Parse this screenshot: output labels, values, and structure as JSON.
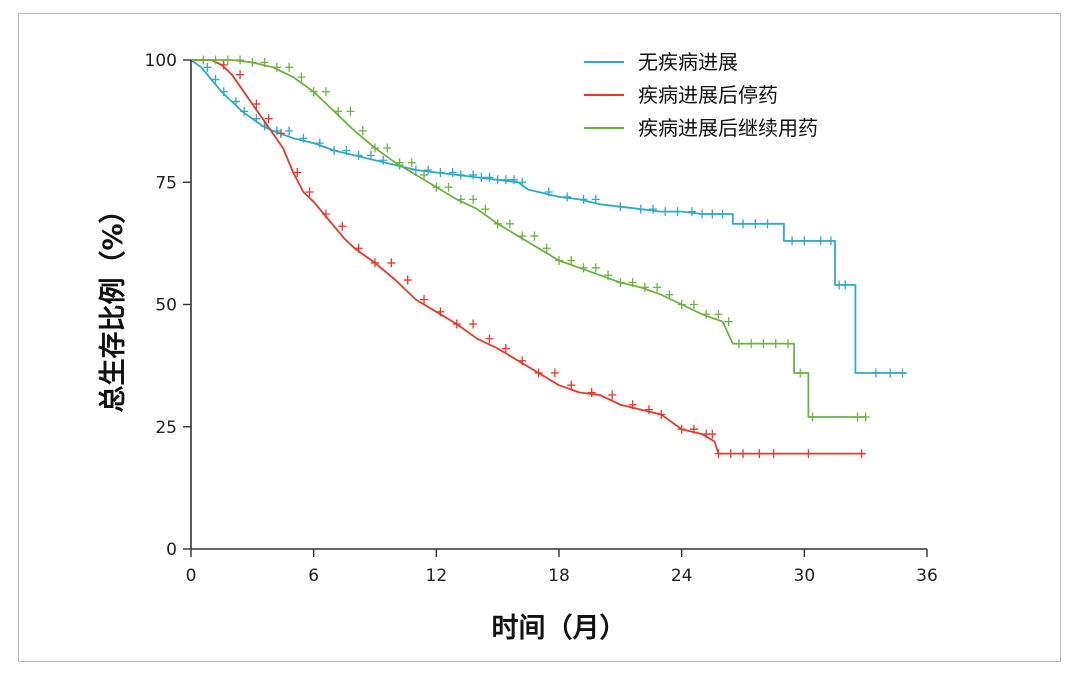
{
  "chart_data": {
    "type": "line",
    "subtype": "kaplan-meier",
    "title": "",
    "xlabel": "时间（月）",
    "ylabel": "总生存比例（%）",
    "xlim": [
      0,
      36
    ],
    "ylim": [
      0,
      100
    ],
    "xticks": [
      "0",
      "6",
      "12",
      "18",
      "24",
      "30",
      "36"
    ],
    "yticks": [
      "0",
      "25",
      "50",
      "75",
      "100"
    ],
    "legend_position": "top-right",
    "grid": false,
    "series": [
      {
        "name": "无疾病进展",
        "color": "#2ea9c9",
        "points": [
          [
            0,
            100
          ],
          [
            0.5,
            98.5
          ],
          [
            1,
            96
          ],
          [
            1.5,
            93.5
          ],
          [
            2,
            91.5
          ],
          [
            2.5,
            89.5
          ],
          [
            3,
            88
          ],
          [
            3.5,
            86.5
          ],
          [
            4,
            85.5
          ],
          [
            5,
            84
          ],
          [
            6,
            83
          ],
          [
            7,
            81.5
          ],
          [
            8,
            80.5
          ],
          [
            9,
            79.5
          ],
          [
            10,
            78.5
          ],
          [
            11,
            77.5
          ],
          [
            12,
            77
          ],
          [
            13,
            76.5
          ],
          [
            14,
            76
          ],
          [
            15,
            75.5
          ],
          [
            16,
            75
          ],
          [
            16.5,
            73.5
          ],
          [
            17,
            73
          ],
          [
            18,
            72
          ],
          [
            19,
            71.5
          ],
          [
            20,
            70.5
          ],
          [
            21,
            70
          ],
          [
            22,
            69.5
          ],
          [
            23,
            69
          ],
          [
            24,
            69
          ],
          [
            25,
            68.5
          ],
          [
            26.5,
            68.5
          ],
          [
            26.5,
            66.5
          ],
          [
            29,
            66.5
          ],
          [
            29,
            63
          ],
          [
            31.5,
            63
          ],
          [
            31.5,
            54
          ],
          [
            32.5,
            54
          ],
          [
            32.5,
            36
          ],
          [
            35,
            36
          ]
        ],
        "censor_x": [
          0.8,
          1.2,
          1.6,
          2.2,
          2.6,
          3.2,
          3.6,
          4.2,
          4.8,
          5.5,
          6.3,
          7,
          7.6,
          8.2,
          8.8,
          9.4,
          10.2,
          11,
          11.6,
          12.2,
          12.8,
          13.2,
          13.8,
          14.2,
          14.6,
          15,
          15.4,
          15.8,
          16.2,
          17.5,
          18.4,
          19.2,
          19.8,
          21,
          22,
          22.6,
          23.2,
          23.8,
          24.5,
          25,
          25.5,
          26,
          27,
          27.6,
          28.2,
          29.4,
          30,
          30.8,
          31.3,
          31.7,
          32,
          33.5,
          34.2,
          34.8
        ]
      },
      {
        "name": "疾病进展后停药",
        "color": "#e8382b",
        "points": [
          [
            0,
            100
          ],
          [
            1,
            100
          ],
          [
            1.5,
            99
          ],
          [
            2,
            97
          ],
          [
            2.5,
            94
          ],
          [
            3,
            91
          ],
          [
            3.5,
            88
          ],
          [
            4,
            85
          ],
          [
            4.5,
            82
          ],
          [
            5,
            77
          ],
          [
            5.5,
            73
          ],
          [
            6,
            71
          ],
          [
            6.5,
            68.5
          ],
          [
            7,
            66
          ],
          [
            7.5,
            63.5
          ],
          [
            8,
            61.5
          ],
          [
            9,
            58.5
          ],
          [
            10,
            55
          ],
          [
            11,
            51
          ],
          [
            12,
            48.5
          ],
          [
            13,
            46
          ],
          [
            14,
            43
          ],
          [
            15,
            41
          ],
          [
            16,
            38.5
          ],
          [
            17,
            36
          ],
          [
            18,
            33.5
          ],
          [
            19,
            32
          ],
          [
            20,
            31.5
          ],
          [
            21,
            29.5
          ],
          [
            22,
            28.5
          ],
          [
            23,
            27.5
          ],
          [
            24,
            24.5
          ],
          [
            25,
            23.5
          ],
          [
            25.6,
            22
          ],
          [
            25.8,
            19.5
          ],
          [
            33,
            19.5
          ]
        ],
        "censor_x": [
          1.6,
          2.4,
          3.2,
          3.8,
          4.4,
          5.2,
          5.8,
          6.6,
          7.4,
          8.2,
          9,
          9.8,
          10.6,
          11.4,
          12.2,
          13,
          13.8,
          14.6,
          15.4,
          16.2,
          17,
          17.8,
          18.6,
          19.6,
          20.6,
          21.6,
          22.4,
          23,
          24,
          24.6,
          25.2,
          25.5,
          25.8,
          26.4,
          27,
          27.8,
          28.5,
          30.2,
          32.8
        ]
      },
      {
        "name": "疾病进展后继续用药",
        "color": "#6db33f",
        "points": [
          [
            0,
            100
          ],
          [
            2,
            100
          ],
          [
            3,
            99.5
          ],
          [
            4,
            98.5
          ],
          [
            5,
            96.5
          ],
          [
            6,
            93.5
          ],
          [
            7,
            89.5
          ],
          [
            8,
            85.5
          ],
          [
            9,
            82
          ],
          [
            10,
            79
          ],
          [
            11,
            76.5
          ],
          [
            12,
            74
          ],
          [
            13,
            71.5
          ],
          [
            14,
            69.5
          ],
          [
            15,
            66.5
          ],
          [
            16,
            64
          ],
          [
            17,
            61.5
          ],
          [
            18,
            59
          ],
          [
            19,
            57.5
          ],
          [
            20,
            56
          ],
          [
            21,
            54.5
          ],
          [
            22,
            53.5
          ],
          [
            23,
            52
          ],
          [
            24,
            50
          ],
          [
            25,
            48
          ],
          [
            26,
            46.5
          ],
          [
            26.5,
            42
          ],
          [
            29.5,
            42
          ],
          [
            29.5,
            36
          ],
          [
            30.2,
            36
          ],
          [
            30.2,
            27
          ],
          [
            33,
            27
          ]
        ],
        "censor_x": [
          0.6,
          1.2,
          1.8,
          2.4,
          3,
          3.6,
          4.2,
          4.8,
          5.4,
          6,
          6.6,
          7.2,
          7.8,
          8.4,
          9,
          9.6,
          10.2,
          10.8,
          11.4,
          12,
          12.6,
          13.2,
          13.8,
          14.4,
          15,
          15.6,
          16.2,
          16.8,
          17.4,
          18,
          18.6,
          19.2,
          19.8,
          20.4,
          21,
          21.6,
          22.2,
          22.8,
          23.4,
          24,
          24.6,
          25.2,
          25.8,
          26.3,
          26.8,
          27.4,
          28,
          28.6,
          29.2,
          29.8,
          30.4,
          32.6,
          33
        ]
      }
    ]
  }
}
